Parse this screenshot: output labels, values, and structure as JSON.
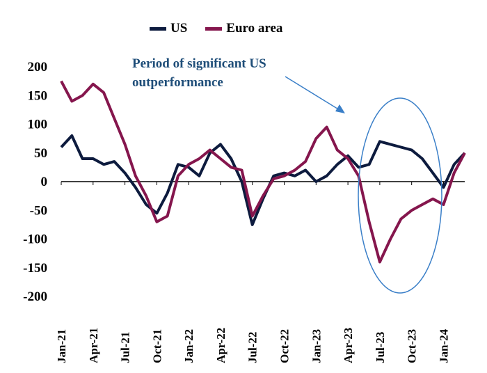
{
  "legend": {
    "us_label": "US",
    "euro_label": "Euro area"
  },
  "annotation": {
    "line1": "Period of significant  US",
    "line2": "outperformance"
  },
  "colors": {
    "us": "#0d1b3e",
    "euro": "#85164d",
    "annotation": "#1f4e79",
    "ellipse": "#3a7fc8"
  },
  "chart_data": {
    "type": "line",
    "title": "",
    "xlabel": "",
    "ylabel": "",
    "ylim": [
      -200,
      200
    ],
    "yticks": [
      200,
      150,
      100,
      50,
      0,
      -50,
      -100,
      -150,
      -200
    ],
    "xticks": [
      "Jan-21",
      "Apr-21",
      "Jul-21",
      "Oct-21",
      "Jan-22",
      "Apr-22",
      "Jul-22",
      "Oct-22",
      "Jan-23",
      "Apr-23",
      "Jul-23",
      "Oct-23",
      "Jan-24"
    ],
    "grid": false,
    "legend_position": "top",
    "x": [
      "Jan-21",
      "Feb-21",
      "Mar-21",
      "Apr-21",
      "May-21",
      "Jun-21",
      "Jul-21",
      "Aug-21",
      "Sep-21",
      "Oct-21",
      "Nov-21",
      "Dec-21",
      "Jan-22",
      "Feb-22",
      "Mar-22",
      "Apr-22",
      "May-22",
      "Jun-22",
      "Jul-22",
      "Aug-22",
      "Sep-22",
      "Oct-22",
      "Nov-22",
      "Dec-22",
      "Jan-23",
      "Feb-23",
      "Mar-23",
      "Apr-23",
      "May-23",
      "Jun-23",
      "Jul-23",
      "Aug-23",
      "Sep-23",
      "Oct-23",
      "Nov-23",
      "Dec-23",
      "Jan-24",
      "Feb-24",
      "Mar-24"
    ],
    "series": [
      {
        "name": "US",
        "values": [
          60,
          80,
          40,
          40,
          30,
          35,
          15,
          -10,
          -40,
          -55,
          -20,
          30,
          25,
          10,
          50,
          65,
          40,
          0,
          -75,
          -30,
          10,
          15,
          10,
          20,
          0,
          10,
          30,
          45,
          25,
          30,
          70,
          65,
          60,
          55,
          40,
          15,
          -10,
          30,
          50
        ]
      },
      {
        "name": "Euro area",
        "values": [
          175,
          140,
          150,
          170,
          155,
          110,
          65,
          10,
          -25,
          -70,
          -60,
          10,
          30,
          40,
          55,
          40,
          25,
          20,
          -60,
          -25,
          5,
          10,
          20,
          35,
          75,
          95,
          55,
          40,
          10,
          -70,
          -140,
          -100,
          -65,
          -50,
          -40,
          -30,
          -40,
          15,
          50
        ]
      }
    ]
  }
}
